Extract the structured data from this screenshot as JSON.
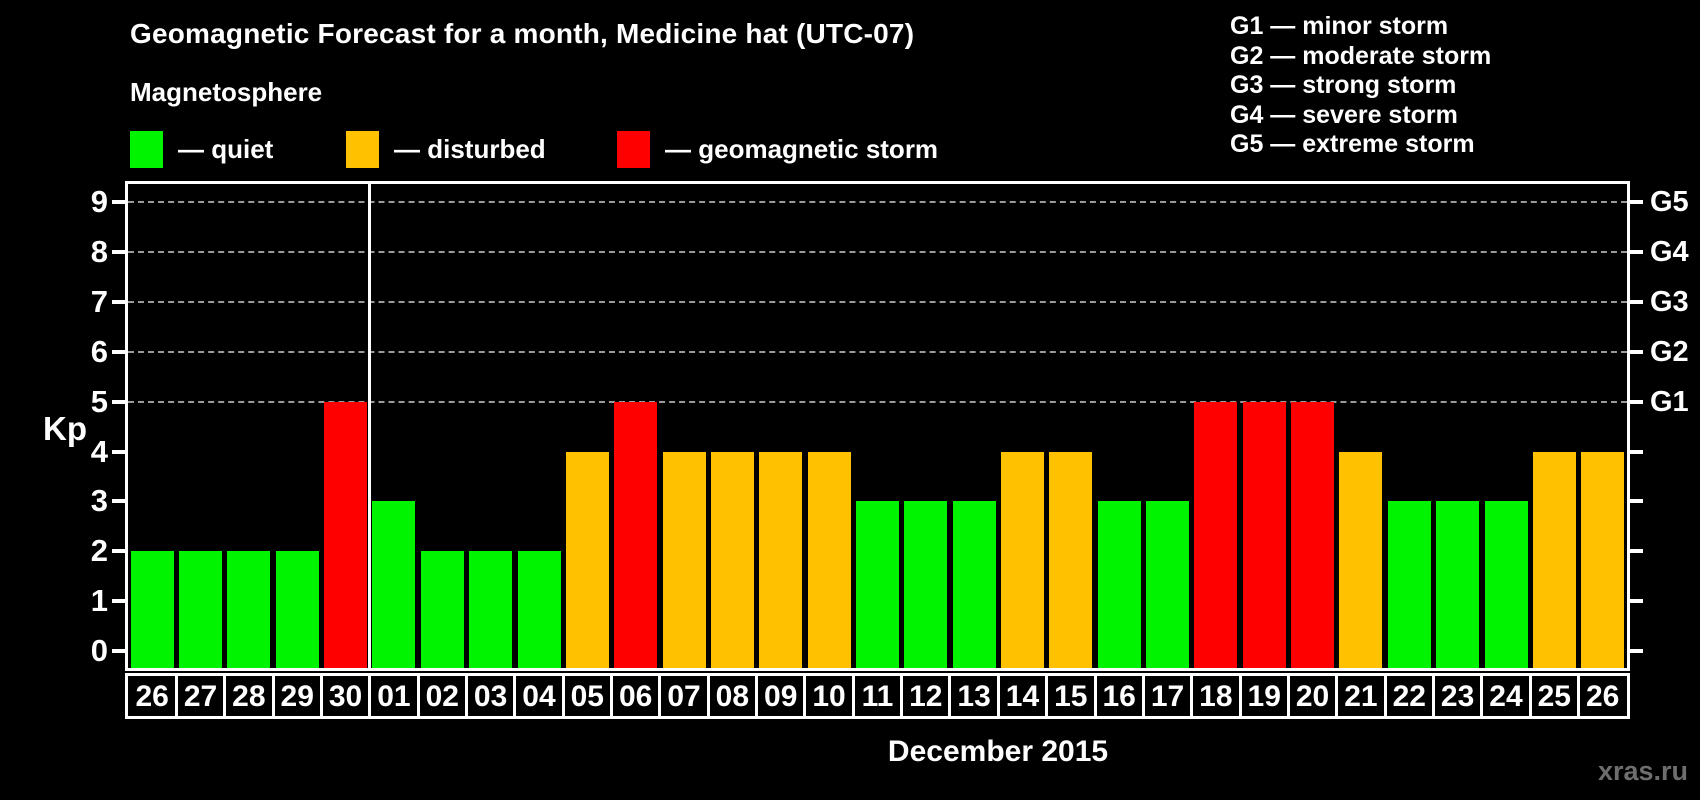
{
  "title": "Geomagnetic Forecast for a month, Medicine hat (UTC-07)",
  "legend": {
    "title": "Magnetosphere",
    "items": [
      {
        "key": "quiet",
        "label": "— quiet",
        "color": "#00f400"
      },
      {
        "key": "disturbed",
        "label": "— disturbed",
        "color": "#ffc100"
      },
      {
        "key": "storm",
        "label": "— geomagnetic storm",
        "color": "#ff0000"
      }
    ]
  },
  "g_legend": {
    "items": [
      {
        "text": "G1 — minor storm"
      },
      {
        "text": "G2 — moderate storm"
      },
      {
        "text": "G3 — strong storm"
      },
      {
        "text": "G4 — severe storm"
      },
      {
        "text": "G5 — extreme storm"
      }
    ]
  },
  "axis": {
    "y_label": "Kp",
    "month_label": "December 2015"
  },
  "watermark": {
    "text": "xras.ru"
  },
  "chart_data": {
    "type": "bar",
    "title": "Geomagnetic Forecast for a month, Medicine hat (UTC-07)",
    "xlabel": "December 2015",
    "ylabel": "Kp",
    "ylim": [
      0,
      9
    ],
    "yticks": [
      0,
      1,
      2,
      3,
      4,
      5,
      6,
      7,
      8,
      9
    ],
    "gridlines_at": [
      5,
      6,
      7,
      8,
      9
    ],
    "grid": "dashed-horizontal",
    "legend_position": "top",
    "right_axis_labels": [
      {
        "kp": 5,
        "label": "G1"
      },
      {
        "kp": 6,
        "label": "G2"
      },
      {
        "kp": 7,
        "label": "G3"
      },
      {
        "kp": 8,
        "label": "G4"
      },
      {
        "kp": 9,
        "label": "G5"
      }
    ],
    "categories": [
      "26",
      "27",
      "28",
      "29",
      "30",
      "01",
      "02",
      "03",
      "04",
      "05",
      "06",
      "07",
      "08",
      "09",
      "10",
      "11",
      "12",
      "13",
      "14",
      "15",
      "16",
      "17",
      "18",
      "19",
      "20",
      "21",
      "22",
      "23",
      "24",
      "25",
      "26"
    ],
    "values": [
      2,
      2,
      2,
      2,
      5,
      3,
      2,
      2,
      2,
      4,
      5,
      4,
      4,
      4,
      4,
      3,
      3,
      3,
      4,
      4,
      3,
      3,
      5,
      5,
      5,
      4,
      3,
      3,
      3,
      4,
      4
    ],
    "states": [
      "quiet",
      "quiet",
      "quiet",
      "quiet",
      "storm",
      "quiet",
      "quiet",
      "quiet",
      "quiet",
      "disturbed",
      "storm",
      "disturbed",
      "disturbed",
      "disturbed",
      "disturbed",
      "quiet",
      "quiet",
      "quiet",
      "disturbed",
      "disturbed",
      "quiet",
      "quiet",
      "storm",
      "storm",
      "storm",
      "disturbed",
      "quiet",
      "quiet",
      "quiet",
      "disturbed",
      "disturbed"
    ],
    "colors": {
      "quiet": "#00f400",
      "disturbed": "#ffc100",
      "storm": "#ff0000"
    },
    "month_boundary_after_index": 4
  }
}
